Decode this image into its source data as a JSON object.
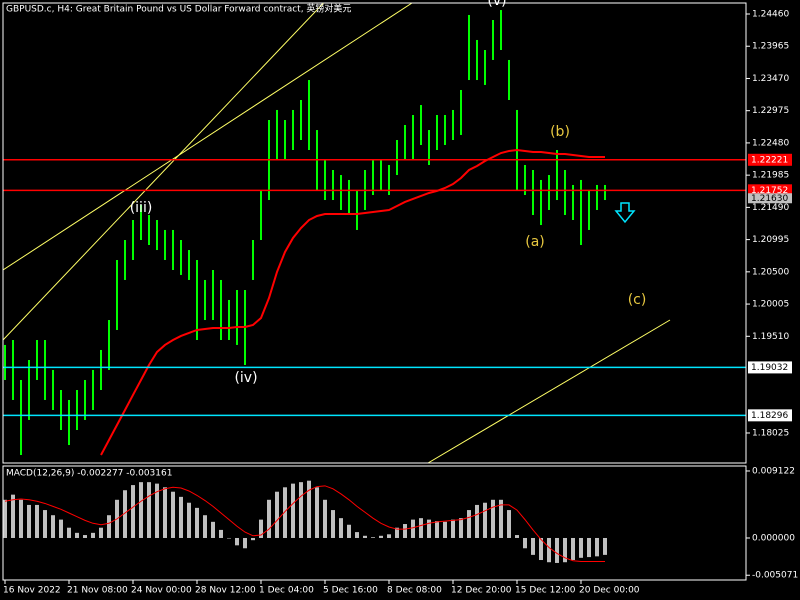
{
  "chart_data": [
    {
      "type": "hilo",
      "title": "GBPUSD.c, H4:  Great Britain Pound vs US Dollar Forward contract, 英镑对美元",
      "categories": [
        "16 Nov 2022",
        null,
        null,
        null,
        null,
        null,
        null,
        null,
        "21 Nov 08:00",
        null,
        null,
        null,
        null,
        null,
        null,
        null,
        "24 Nov 00:00",
        null,
        null,
        null,
        null,
        null,
        null,
        null,
        "28 Nov 12:00",
        null,
        null,
        null,
        null,
        null,
        null,
        null,
        "1 Dec 04:00",
        null,
        null,
        null,
        null,
        null,
        null,
        null,
        "5 Dec 16:00",
        null,
        null,
        null,
        null,
        null,
        null,
        null,
        "8 Dec 08:00",
        null,
        null,
        null,
        null,
        null,
        null,
        null,
        "12 Dec 20:00",
        null,
        null,
        null,
        null,
        null,
        null,
        null,
        "15 Dec 12:00",
        null,
        null,
        null,
        null,
        null,
        null,
        null,
        "20 Dec 00:00",
        null,
        null,
        null
      ],
      "high": [
        1.19377,
        1.19453,
        1.18839,
        1.19146,
        1.19453,
        1.19453,
        1.18993,
        1.18685,
        1.18532,
        1.18685,
        1.18839,
        1.18993,
        1.193,
        1.1976,
        1.20682,
        1.20989,
        1.21296,
        1.21527,
        1.21373,
        1.21296,
        1.21143,
        1.21143,
        1.20989,
        1.20835,
        1.20682,
        1.20375,
        1.20528,
        1.20375,
        1.20068,
        1.20221,
        1.20221,
        1.20989,
        1.21757,
        1.22832,
        1.22986,
        1.22832,
        1.22986,
        1.23139,
        1.23446,
        1.22678,
        1.22218,
        1.22064,
        1.21987,
        1.21911,
        1.21757,
        1.22064,
        1.22218,
        1.22218,
        1.22141,
        1.22525,
        1.22755,
        1.22909,
        1.23062,
        1.22678,
        1.22909,
        1.22909,
        1.22986,
        1.23293,
        1.24445,
        1.24061,
        1.23907,
        1.24368,
        1.24521,
        1.23754,
        1.22986,
        1.22141,
        1.22064,
        1.21911,
        1.21987,
        1.22371,
        1.22064,
        1.21834,
        1.21911,
        1.21757,
        1.21834,
        1.21834
      ],
      "low": [
        1.18839,
        1.18532,
        1.17687,
        1.18225,
        1.18839,
        1.18532,
        1.18378,
        1.18071,
        1.1784,
        1.18071,
        1.18225,
        1.18378,
        1.18685,
        1.18993,
        1.19607,
        1.20375,
        1.20682,
        1.20989,
        1.20912,
        1.20835,
        1.20682,
        1.20528,
        1.20452,
        1.20375,
        1.19453,
        1.1976,
        1.1976,
        1.19453,
        1.19453,
        1.19377,
        1.19069,
        1.20375,
        1.20989,
        1.21603,
        1.22218,
        1.22218,
        1.22371,
        1.22525,
        1.22371,
        1.21757,
        1.21603,
        1.21603,
        1.2145,
        1.21373,
        1.21143,
        1.2145,
        1.2168,
        1.21757,
        1.2168,
        1.21987,
        1.22218,
        1.22218,
        1.22448,
        1.22141,
        1.22371,
        1.22448,
        1.22525,
        1.22602,
        1.23446,
        1.23446,
        1.2337,
        1.23754,
        1.23907,
        1.23139,
        1.21757,
        1.2168,
        1.21373,
        1.21219,
        1.2145,
        1.21603,
        1.21373,
        1.21296,
        1.20912,
        1.21143,
        1.2145,
        1.21603
      ],
      "color": "#00ff00",
      "lines": [
        {
          "color": "#ff0000",
          "values": [
            null,
            null,
            null,
            null,
            null,
            null,
            null,
            null,
            null,
            null,
            null,
            null,
            1.17687,
            1.17917,
            1.18148,
            1.18378,
            1.18609,
            1.18839,
            1.19069,
            1.19269,
            1.19377,
            1.19453,
            1.19515,
            1.19561,
            1.19607,
            1.19622,
            1.19638,
            1.19638,
            1.19638,
            1.19653,
            1.19653,
            1.19684,
            1.19791,
            1.20098,
            1.20498,
            1.20805,
            1.2102,
            1.21173,
            1.21296,
            1.21358,
            1.21388,
            1.21388,
            1.21388,
            1.21388,
            1.21388,
            1.21404,
            1.21419,
            1.21434,
            1.2145,
            1.21511,
            1.21573,
            1.21619,
            1.21665,
            1.21711,
            1.21742,
            1.21788,
            1.21849,
            1.21941,
            1.22064,
            1.22126,
            1.22202,
            1.22264,
            1.22325,
            1.22356,
            1.22371,
            1.22356,
            1.22341,
            1.22341,
            1.22325,
            1.2231,
            1.2231,
            1.22295,
            1.22279,
            1.22264,
            1.22264,
            1.22264
          ]
        }
      ],
      "levels": [
        {
          "value": 1.22221,
          "color": "#ff0000"
        },
        {
          "value": 1.21752,
          "color": "#ff0000"
        },
        {
          "value": 1.19032,
          "color": "#00e5ff"
        },
        {
          "value": 1.18296,
          "color": "#00e5ff"
        }
      ],
      "current_price": {
        "value": 1.2163,
        "label": "1.21630"
      },
      "annotations": [
        "(iii)",
        "(iv)",
        "(v)",
        "(a)",
        "(b)",
        "(c)"
      ],
      "ylim": [
        1.17564,
        1.24675
      ],
      "yticks": [
        {
          "value": 1.2446,
          "label": "1.24460"
        },
        1.23965,
        {
          "value": 1.2347,
          "label": "1.23470"
        },
        1.22975,
        {
          "value": 1.2248,
          "label": "1.22480"
        },
        1.21985,
        {
          "value": 1.2149,
          "label": "1.21490"
        },
        1.20995,
        {
          "value": 1.205,
          "label": "1.20500"
        },
        1.20005,
        {
          "value": 1.1951,
          "label": "1.19510"
        },
        1.18025
      ]
    },
    {
      "type": "bar",
      "title": "MACD(12,26,9) -0.002277 -0.003161",
      "values": [
        0.0052,
        0.0059,
        0.0052,
        0.0045,
        0.0045,
        0.0038,
        0.0031,
        0.0025,
        0.0014,
        0.0007,
        0.0004,
        0.0007,
        0.0014,
        0.0031,
        0.0052,
        0.0065,
        0.0072,
        0.0076,
        0.0076,
        0.0074,
        0.0069,
        0.0063,
        0.0056,
        0.0048,
        0.0041,
        0.0031,
        0.0022,
        0.0011,
        0,
        -0.001,
        -0.0014,
        -0.0003,
        0.0025,
        0.0052,
        0.0063,
        0.0069,
        0.0074,
        0.0076,
        0.0078,
        0.0069,
        0.0052,
        0.0038,
        0.0027,
        0.0018,
        0.0008,
        0.0003,
        0.0001,
        0.0003,
        0.0005,
        0.0014,
        0.0019,
        0.0025,
        0.0027,
        0.0025,
        0.0023,
        0.0022,
        0.0025,
        0.0027,
        0.0038,
        0.0045,
        0.0048,
        0.0052,
        0.0052,
        0.0038,
        0.0004,
        -0.0014,
        -0.0023,
        -0.003,
        -0.0033,
        -0.0034,
        -0.0033,
        -0.003,
        -0.0027,
        -0.0026,
        -0.0025,
        -0.0023
      ],
      "color": "#c0c0c0",
      "lines": [
        {
          "color": "#ff0000",
          "values": [
            0.005,
            0.0052,
            0.0053,
            0.0052,
            0.005,
            0.0047,
            0.0043,
            0.0039,
            0.0034,
            0.0029,
            0.0024,
            0.002,
            0.0018,
            0.002,
            0.0026,
            0.0034,
            0.0042,
            0.005,
            0.0057,
            0.0063,
            0.0067,
            0.0069,
            0.0068,
            0.0064,
            0.0058,
            0.0051,
            0.0043,
            0.0034,
            0.0025,
            0.0016,
            0.0008,
            0.0003,
            0.0004,
            0.0012,
            0.0024,
            0.0036,
            0.0047,
            0.0057,
            0.0065,
            0.007,
            0.0071,
            0.0067,
            0.006,
            0.0052,
            0.0043,
            0.0035,
            0.0027,
            0.002,
            0.0015,
            0.0012,
            0.0012,
            0.0014,
            0.0017,
            0.002,
            0.0022,
            0.0023,
            0.0024,
            0.0025,
            0.0028,
            0.0032,
            0.0037,
            0.0042,
            0.0045,
            0.0045,
            0.0038,
            0.0025,
            0.0011,
            -0.0002,
            -0.0013,
            -0.0021,
            -0.0027,
            -0.0031,
            -0.0032,
            -0.0032,
            -0.0032,
            -0.0032
          ]
        }
      ],
      "ylim": [
        -0.00572,
        0.0098
      ],
      "yticks": [
        0.009122,
        {
          "value": 0,
          "label": "0.000000"
        },
        -0.005071
      ]
    }
  ]
}
